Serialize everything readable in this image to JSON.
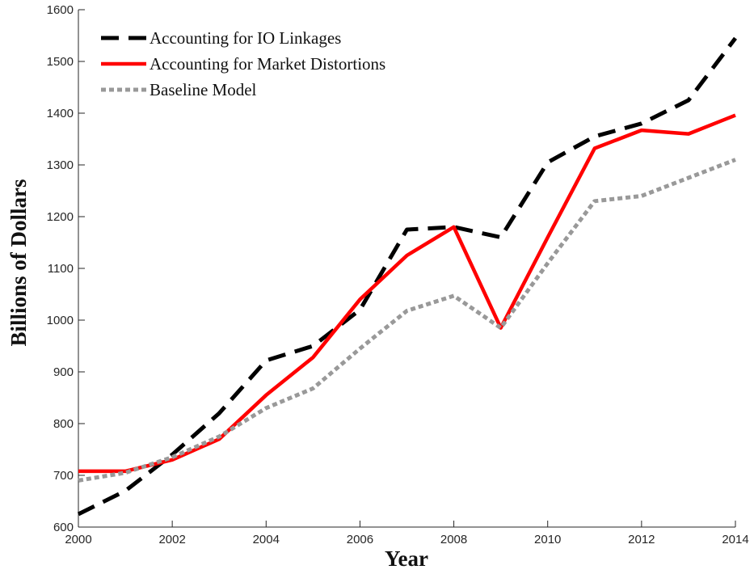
{
  "chart_data": {
    "type": "line",
    "x_label": "Year",
    "y_label": "Billions of Dollars",
    "x": [
      2000,
      2001,
      2002,
      2003,
      2004,
      2005,
      2006,
      2007,
      2008,
      2009,
      2010,
      2011,
      2012,
      2013,
      2014
    ],
    "series": [
      {
        "name": "Accounting for IO Linkages",
        "color": "#000000",
        "linestyle": "dashed",
        "values": [
          625,
          670,
          740,
          820,
          922,
          950,
          1020,
          1175,
          1180,
          1160,
          1305,
          1355,
          1380,
          1425,
          1545
        ]
      },
      {
        "name": "Accounting for Market Distortions",
        "color": "#ff0000",
        "linestyle": "solid",
        "values": [
          708,
          708,
          730,
          770,
          855,
          928,
          1040,
          1125,
          1180,
          985,
          1160,
          1332,
          1367,
          1360,
          1396
        ]
      },
      {
        "name": "Baseline Model",
        "color": "#999999",
        "linestyle": "dotted",
        "values": [
          690,
          705,
          735,
          775,
          830,
          868,
          945,
          1018,
          1047,
          985,
          1110,
          1230,
          1240,
          1275,
          1310
        ]
      }
    ],
    "xlim": [
      2000,
      2014
    ],
    "xticks": [
      2000,
      2002,
      2004,
      2006,
      2008,
      2010,
      2012,
      2014
    ],
    "ylim": [
      600,
      1600
    ],
    "yticks": [
      600,
      700,
      800,
      900,
      1000,
      1100,
      1200,
      1300,
      1400,
      1500,
      1600
    ],
    "legend": "upper left"
  }
}
